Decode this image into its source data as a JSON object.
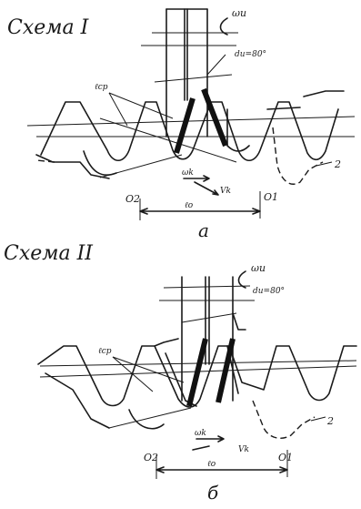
{
  "scheme1": {
    "title": "Схема I",
    "omega": "ωu",
    "angle": "du=80°",
    "lcp": "ℓcp",
    "wk": "ωk",
    "vk": "Vk",
    "o2": "O2",
    "o1": "O1",
    "lo": "ℓo",
    "gear": "2",
    "caption": "а"
  },
  "scheme2": {
    "title": "Схема II",
    "omega": "ωu",
    "angle": "du=80°",
    "lcp": "ℓcp",
    "wk": "ωk",
    "vk": "Vk",
    "o2": "O2",
    "o1": "O1",
    "lo": "ℓo",
    "gear": "2",
    "caption": "б"
  }
}
